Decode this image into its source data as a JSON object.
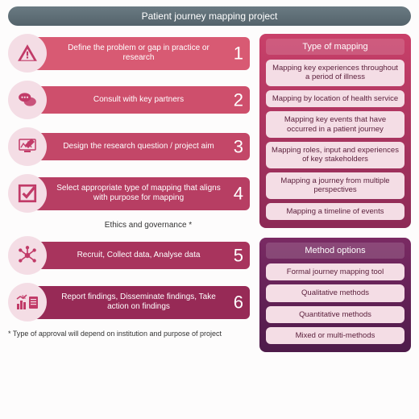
{
  "title": "Patient journey mapping project",
  "steps": [
    {
      "num": "1",
      "label": "Define the problem or gap in practice or research",
      "color": "#d85a73",
      "icon": "alert"
    },
    {
      "num": "2",
      "label": "Consult with key partners",
      "color": "#ce4f6c",
      "icon": "chat"
    },
    {
      "num": "3",
      "label": "Design the research question / project aim",
      "color": "#c34768",
      "icon": "design"
    },
    {
      "num": "4",
      "label": "Select appropriate type of mapping that aligns with purpose for mapping",
      "color": "#b73e63",
      "icon": "check"
    },
    {
      "num": "5",
      "label": "Recruit, Collect data, Analyse data",
      "color": "#a8345d",
      "icon": "network"
    },
    {
      "num": "6",
      "label": "Report findings, Disseminate findings, Take action on findings",
      "color": "#972a56",
      "icon": "report"
    }
  ],
  "interlabel": "Ethics and governance *",
  "footnote": "* Type of approval will depend on institution and purpose of project",
  "panels": [
    {
      "header": "Type of mapping",
      "gradient_from": "#c94069",
      "gradient_to": "#8c2a56",
      "items": [
        "Mapping key experiences throughout a period of illness",
        "Mapping by location of health service",
        "Mapping key events that have occurred in a patient journey",
        "Mapping roles, input and experiences of key stakeholders",
        "Mapping a journey from multiple perspectives",
        "Mapping a timeline of events"
      ]
    },
    {
      "header": "Method options",
      "gradient_from": "#7a2a63",
      "gradient_to": "#4e1b4a",
      "items": [
        "Formal journey mapping tool",
        "Qualitative methods",
        "Quantitative methods",
        "Mixed or multi-methods"
      ]
    }
  ],
  "icon_bg": "#f4dde5",
  "icon_color": "#c13b68",
  "item_bg": "#f4dde5",
  "item_text": "#5a1e3a"
}
